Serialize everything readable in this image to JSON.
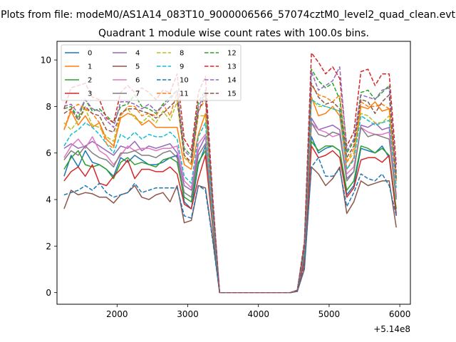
{
  "chart_data": {
    "type": "line",
    "suptitle": "Plots from file: modeM0/AS1A14_083T10_9000006566_57074cztM0_level2_quad_clean.evt",
    "title": "Quadrant 1 module wise count rates with 100.0s bins.",
    "xlabel": "",
    "ylabel": "",
    "x_offset_label": "+5.14e8",
    "xlim": [
      1150,
      6150
    ],
    "ylim": [
      -0.5,
      10.8
    ],
    "x_ticks": [
      2000,
      3000,
      4000,
      5000,
      6000
    ],
    "y_ticks": [
      0,
      2,
      4,
      6,
      8,
      10
    ],
    "x_tick_labels": [
      "2000",
      "3000",
      "4000",
      "5000",
      "6000"
    ],
    "y_tick_labels": [
      "0",
      "2",
      "4",
      "6",
      "8",
      "10"
    ],
    "grid": false,
    "legend_position": "top-left",
    "x": [
      1250,
      1350,
      1450,
      1550,
      1650,
      1750,
      1850,
      1950,
      2050,
      2150,
      2250,
      2350,
      2450,
      2550,
      2650,
      2750,
      2850,
      2950,
      3050,
      3150,
      3250,
      3350,
      3450,
      3550,
      3650,
      3750,
      3850,
      3950,
      4050,
      4150,
      4250,
      4350,
      4450,
      4550,
      4650,
      4750,
      4850,
      4950,
      5050,
      5150,
      5250,
      5350,
      5450,
      5550,
      5650,
      5750,
      5850,
      5950
    ],
    "series": [
      {
        "name": "0",
        "color": "#1f77b4",
        "dashed": false,
        "values": [
          5.0,
          5.9,
          5.4,
          6.1,
          5.6,
          5.5,
          5.3,
          5.0,
          5.8,
          5.6,
          5.9,
          5.7,
          5.5,
          5.5,
          5.6,
          5.8,
          5.9,
          3.9,
          3.6,
          5.5,
          6.3,
          3.0,
          0,
          0,
          0,
          0,
          0,
          0,
          0,
          0,
          0,
          0,
          0,
          0.1,
          1.5,
          6.7,
          6.0,
          6.2,
          6.3,
          6.1,
          4.2,
          4.6,
          6.2,
          6.1,
          6.0,
          6.3,
          5.8,
          3.4
        ]
      },
      {
        "name": "1",
        "color": "#ff7f0e",
        "dashed": false,
        "values": [
          7.0,
          7.8,
          7.2,
          7.6,
          7.1,
          7.3,
          6.6,
          6.3,
          7.5,
          7.7,
          7.6,
          7.2,
          7.4,
          7.1,
          7.1,
          7.1,
          7.1,
          5.5,
          5.3,
          6.8,
          7.7,
          3.6,
          0,
          0,
          0,
          0,
          0,
          0,
          0,
          0,
          0,
          0,
          0,
          0.1,
          1.8,
          8.4,
          7.6,
          7.7,
          8.0,
          7.6,
          5.3,
          5.8,
          8.0,
          7.9,
          8.2,
          7.8,
          7.9,
          4.8
        ]
      },
      {
        "name": "2",
        "color": "#2ca02c",
        "dashed": false,
        "values": [
          5.3,
          5.8,
          6.1,
          5.5,
          5.4,
          5.5,
          5.3,
          4.9,
          5.6,
          5.8,
          5.5,
          5.6,
          5.5,
          5.4,
          5.7,
          5.8,
          5.6,
          4.1,
          3.9,
          5.6,
          6.1,
          3.0,
          0,
          0,
          0,
          0,
          0,
          0,
          0,
          0,
          0,
          0,
          0,
          0.1,
          1.5,
          6.5,
          6.1,
          6.3,
          6.3,
          6.1,
          4.4,
          4.8,
          6.3,
          6.2,
          6.0,
          6.2,
          5.9,
          3.6
        ]
      },
      {
        "name": "3",
        "color": "#d62728",
        "dashed": false,
        "values": [
          4.8,
          5.2,
          5.4,
          5.0,
          5.5,
          4.7,
          4.6,
          5.0,
          5.3,
          5.7,
          4.9,
          5.3,
          5.3,
          5.2,
          5.2,
          5.4,
          5.1,
          3.8,
          3.6,
          4.9,
          5.9,
          2.9,
          0,
          0,
          0,
          0,
          0,
          0,
          0,
          0,
          0,
          0,
          0,
          0.1,
          1.3,
          6.3,
          5.8,
          5.9,
          6.1,
          5.8,
          4.1,
          4.5,
          5.7,
          5.8,
          5.8,
          5.6,
          5.9,
          3.3
        ]
      },
      {
        "name": "4",
        "color": "#9467bd",
        "dashed": false,
        "values": [
          6.2,
          6.4,
          6.2,
          6.3,
          6.5,
          6.3,
          6.1,
          5.9,
          6.3,
          6.2,
          6.5,
          6.1,
          6.3,
          6.2,
          6.3,
          6.4,
          6.0,
          4.6,
          4.4,
          6.1,
          6.7,
          3.3,
          0,
          0,
          0,
          0,
          0,
          0,
          0,
          0,
          0,
          0,
          0,
          0.1,
          1.6,
          7.5,
          7.0,
          7.1,
          7.2,
          7.0,
          4.9,
          5.2,
          7.2,
          7.1,
          7.3,
          7.0,
          7.1,
          4.1
        ]
      },
      {
        "name": "5",
        "color": "#8c564b",
        "dashed": false,
        "values": [
          3.6,
          4.4,
          4.2,
          4.3,
          4.25,
          4.1,
          4.1,
          3.85,
          4.2,
          4.3,
          4.6,
          4.1,
          4.0,
          4.2,
          4.3,
          3.9,
          4.6,
          3.0,
          3.1,
          4.6,
          4.5,
          2.4,
          0,
          0,
          0,
          0,
          0,
          0,
          0,
          0,
          0,
          0,
          0,
          0.05,
          1.0,
          5.4,
          5.1,
          4.6,
          4.9,
          5.4,
          3.4,
          3.9,
          4.8,
          4.6,
          4.7,
          4.8,
          4.8,
          2.8
        ]
      },
      {
        "name": "6",
        "color": "#e377c2",
        "dashed": false,
        "values": [
          5.8,
          6.3,
          6.6,
          6.2,
          6.7,
          6.1,
          5.9,
          5.5,
          5.9,
          6.3,
          6.1,
          6.2,
          6.2,
          6.1,
          6.2,
          6.2,
          6.3,
          4.8,
          4.5,
          6.4,
          6.8,
          3.4,
          0,
          0,
          0,
          0,
          0,
          0,
          0,
          0,
          0,
          0,
          0,
          0.1,
          1.7,
          7.3,
          7.0,
          6.9,
          6.7,
          6.8,
          5.1,
          5.4,
          7.1,
          6.9,
          6.8,
          6.8,
          6.9,
          4.2
        ]
      },
      {
        "name": "7",
        "color": "#7f7f7f",
        "dashed": false,
        "values": [
          5.7,
          6.1,
          5.9,
          6.3,
          6.0,
          5.8,
          5.7,
          5.4,
          6.0,
          6.0,
          6.1,
          5.9,
          5.9,
          5.8,
          6.0,
          6.1,
          5.8,
          4.3,
          4.1,
          5.9,
          6.4,
          3.1,
          0,
          0,
          0,
          0,
          0,
          0,
          0,
          0,
          0,
          0,
          0,
          0.1,
          1.6,
          7.3,
          6.8,
          6.7,
          6.9,
          6.8,
          4.8,
          5.2,
          7.1,
          6.7,
          6.8,
          6.7,
          6.6,
          4.0
        ]
      },
      {
        "name": "8",
        "color": "#bcbd22",
        "dashed": true,
        "values": [
          7.3,
          7.0,
          7.4,
          7.9,
          7.2,
          7.1,
          6.7,
          6.5,
          7.7,
          7.9,
          7.5,
          7.3,
          7.6,
          7.3,
          7.8,
          7.4,
          8.2,
          5.8,
          5.5,
          7.6,
          7.6,
          3.7,
          0,
          0,
          0,
          0,
          0,
          0,
          0,
          0,
          0,
          0,
          0,
          0.1,
          1.9,
          8.3,
          8.0,
          8.0,
          7.9,
          7.8,
          5.6,
          6.0,
          7.7,
          7.6,
          7.3,
          7.3,
          7.6,
          4.6
        ]
      },
      {
        "name": "9",
        "color": "#17becf",
        "dashed": true,
        "values": [
          6.3,
          6.8,
          7.0,
          7.3,
          7.1,
          6.8,
          6.4,
          6.0,
          6.8,
          6.6,
          6.9,
          6.6,
          6.8,
          6.7,
          6.7,
          6.9,
          6.6,
          5.0,
          4.7,
          6.7,
          7.3,
          3.5,
          0,
          0,
          0,
          0,
          0,
          0,
          0,
          0,
          0,
          0,
          0,
          0.1,
          1.8,
          8.3,
          8.1,
          8.0,
          7.9,
          7.8,
          5.3,
          5.7,
          7.6,
          7.4,
          7.2,
          7.3,
          7.4,
          4.5
        ]
      },
      {
        "name": "10",
        "color": "#1f77b4",
        "dashed": true,
        "values": [
          4.2,
          4.3,
          4.4,
          4.6,
          4.4,
          4.7,
          4.3,
          4.1,
          4.2,
          4.3,
          4.7,
          4.3,
          4.4,
          4.5,
          4.5,
          4.5,
          4.5,
          3.3,
          3.2,
          4.6,
          4.4,
          2.3,
          0,
          0,
          0,
          0,
          0,
          0,
          0,
          0,
          0,
          0,
          0,
          0.05,
          1.1,
          5.4,
          5.8,
          5.0,
          5.0,
          5.3,
          3.7,
          4.3,
          5.1,
          4.9,
          4.8,
          5.1,
          4.6,
          3.3
        ]
      },
      {
        "name": "11",
        "color": "#ff7f0e",
        "dashed": true,
        "values": [
          7.0,
          7.9,
          8.1,
          7.9,
          7.7,
          7.3,
          6.4,
          6.2,
          7.6,
          8.0,
          8.0,
          7.6,
          7.7,
          7.6,
          8.1,
          7.6,
          8.6,
          5.9,
          5.5,
          7.8,
          8.3,
          3.9,
          0,
          0,
          0,
          0,
          0,
          0,
          0,
          0,
          0,
          0,
          0,
          0.1,
          2.0,
          8.9,
          8.5,
          8.4,
          8.2,
          8.5,
          5.6,
          6.2,
          8.2,
          8.0,
          8.0,
          8.1,
          7.9,
          4.9
        ]
      },
      {
        "name": "12",
        "color": "#2ca02c",
        "dashed": true,
        "values": [
          7.9,
          8.0,
          7.5,
          8.3,
          7.8,
          7.9,
          7.6,
          7.3,
          8.0,
          8.1,
          8.5,
          8.0,
          7.9,
          7.7,
          8.1,
          8.4,
          8.7,
          6.2,
          5.9,
          8.2,
          8.7,
          4.0,
          0,
          0,
          0,
          0,
          0,
          0,
          0,
          0,
          0,
          0,
          0,
          0.1,
          2.1,
          9.6,
          9.1,
          8.8,
          9.0,
          8.3,
          6.0,
          6.5,
          8.6,
          8.7,
          8.3,
          8.6,
          8.9,
          5.0
        ]
      },
      {
        "name": "13",
        "color": "#d62728",
        "dashed": true,
        "values": [
          7.9,
          8.8,
          8.9,
          9.0,
          8.4,
          8.3,
          7.5,
          7.3,
          8.6,
          8.9,
          8.6,
          8.8,
          8.6,
          8.3,
          8.7,
          8.6,
          9.4,
          6.6,
          6.1,
          8.6,
          9.3,
          4.3,
          0,
          0,
          0,
          0,
          0,
          0,
          0,
          0,
          0,
          0,
          0,
          0.1,
          2.2,
          10.3,
          9.9,
          9.4,
          9.7,
          9.2,
          6.3,
          6.9,
          9.5,
          9.6,
          8.9,
          9.4,
          9.4,
          5.5
        ]
      },
      {
        "name": "14",
        "color": "#9467bd",
        "dashed": true,
        "values": [
          8.0,
          8.1,
          7.7,
          8.3,
          7.9,
          7.8,
          7.4,
          7.1,
          8.2,
          8.2,
          8.1,
          7.9,
          8.1,
          7.8,
          8.0,
          8.3,
          8.7,
          6.1,
          5.8,
          8.0,
          8.6,
          4.1,
          0,
          0,
          0,
          0,
          0,
          0,
          0,
          0,
          0,
          0,
          0,
          0.1,
          2.0,
          9.5,
          8.7,
          8.9,
          9.1,
          9.7,
          6.1,
          6.6,
          8.5,
          8.4,
          8.3,
          8.7,
          8.8,
          5.2
        ]
      },
      {
        "name": "15",
        "color": "#8c564b",
        "dashed": true,
        "values": [
          7.7,
          7.9,
          7.4,
          8.0,
          7.7,
          7.6,
          7.0,
          6.9,
          7.7,
          7.9,
          7.9,
          7.8,
          7.7,
          7.5,
          7.7,
          8.0,
          8.3,
          5.9,
          5.6,
          7.8,
          8.5,
          3.9,
          0,
          0,
          0,
          0,
          0,
          0,
          0,
          0,
          0,
          0,
          0,
          0.1,
          1.9,
          9.0,
          8.4,
          8.1,
          8.2,
          7.9,
          5.8,
          6.3,
          8.3,
          8.2,
          7.7,
          8.2,
          8.5,
          4.9
        ]
      }
    ]
  }
}
